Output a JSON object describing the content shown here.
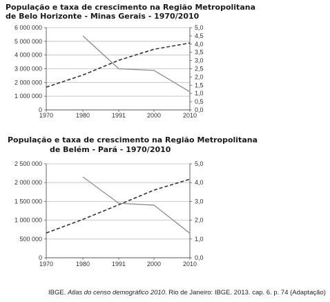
{
  "chart_data": [
    {
      "type": "line",
      "title": "População e taxa de crescimento na Região Metropolitana",
      "title_line2": "de Belo Horizonte - Minas Gerais - 1970/2010",
      "x": [
        1970,
        1980,
        1991,
        2000,
        2010
      ],
      "x_tick_labels": [
        "1970",
        "1980",
        "1991",
        "2000",
        "2010"
      ],
      "ylim_left": [
        0,
        6000000
      ],
      "y_left_ticks": [
        "0",
        "1 000 000",
        "2 000 000",
        "3 000 000",
        "4 000 000",
        "5 000 000",
        "6 000 000"
      ],
      "ylim_right": [
        0,
        5.0
      ],
      "y_right_ticks": [
        "0,0",
        "0,5",
        "1,0",
        "1,5",
        "2,0",
        "2,5",
        "3,0",
        "3,5",
        "4,0",
        "4,5",
        "5,0"
      ],
      "grid": true,
      "series": [
        {
          "axis": "left",
          "style": "dashed",
          "color": "#333333",
          "x": [
            1970,
            1980,
            1991,
            2000,
            2010
          ],
          "values": [
            1660000,
            2540000,
            3620000,
            4420000,
            4880000
          ]
        },
        {
          "axis": "right",
          "style": "solid",
          "color": "#8c8c8c",
          "x": [
            1980,
            1991,
            2000,
            2010
          ],
          "values": [
            4.5,
            2.5,
            2.4,
            1.1
          ]
        }
      ]
    },
    {
      "type": "line",
      "title": "População e taxa de crescimento na Região Metropolitana",
      "title_line2": "de Belém - Pará - 1970/2010",
      "x": [
        1970,
        1980,
        1991,
        2000,
        2010
      ],
      "x_tick_labels": [
        "1970",
        "1980",
        "1991",
        "2000",
        "2010"
      ],
      "ylim_left": [
        0,
        2500000
      ],
      "y_left_ticks": [
        "0",
        "500 000",
        "1 000 000",
        "1 500 000",
        "2 000 000",
        "2 500 000"
      ],
      "ylim_right": [
        0,
        5.0
      ],
      "y_right_ticks": [
        "0,0",
        "1,0",
        "2,0",
        "3,0",
        "4,0",
        "5,0"
      ],
      "grid": true,
      "series": [
        {
          "axis": "left",
          "style": "dashed",
          "color": "#333333",
          "x": [
            1970,
            1980,
            1991,
            2000,
            2010
          ],
          "values": [
            660000,
            1020000,
            1410000,
            1800000,
            2090000
          ]
        },
        {
          "axis": "right",
          "style": "solid",
          "color": "#8c8c8c",
          "x": [
            1980,
            1991,
            2000,
            2010
          ],
          "values": [
            4.3,
            2.9,
            2.8,
            1.3
          ]
        }
      ]
    }
  ],
  "source": {
    "prefix": "IBGE. ",
    "title_italic": "Atlas do censo demográfico 2010",
    "suffix": ". Rio de Janeiro: IBGE. 2013. cap. 6. p. 74 (Adaptação)"
  }
}
